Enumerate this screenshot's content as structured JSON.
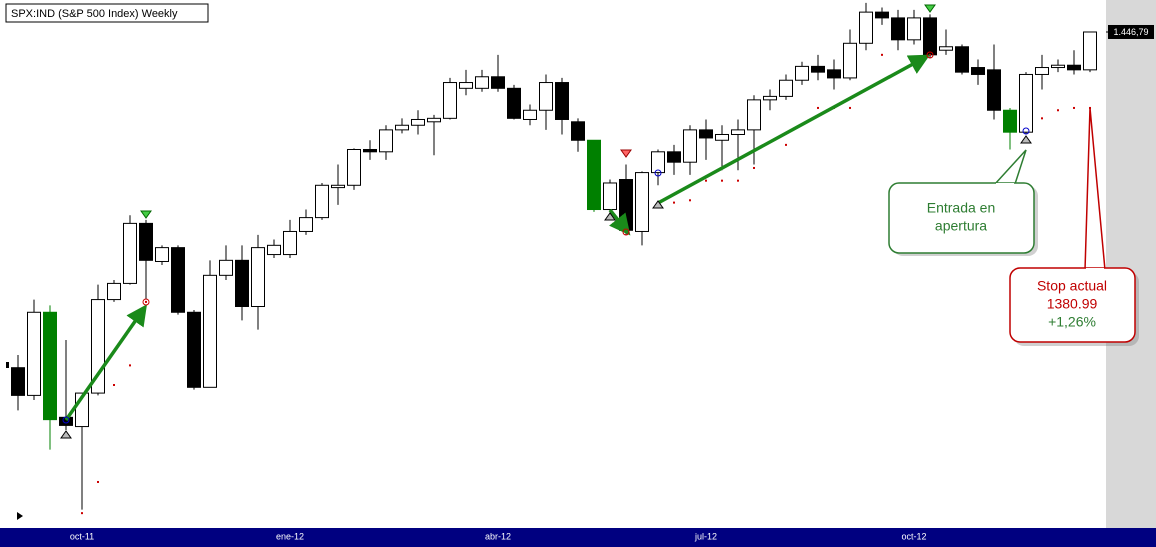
{
  "chart_data": {
    "type": "candlestick",
    "title": "SPX:IND (S&P 500 Index) Weekly",
    "categories": [
      null,
      null,
      null,
      null,
      "oct-11",
      null,
      null,
      null,
      null,
      null,
      null,
      null,
      null,
      null,
      null,
      null,
      null,
      "ene-12",
      null,
      null,
      null,
      null,
      null,
      null,
      null,
      null,
      null,
      null,
      null,
      null,
      "abr-12",
      null,
      null,
      null,
      null,
      null,
      null,
      null,
      null,
      null,
      null,
      null,
      null,
      "jul-12",
      null,
      null,
      null,
      null,
      null,
      null,
      null,
      null,
      null,
      null,
      null,
      null,
      "oct-12",
      null,
      null,
      null,
      null,
      null,
      null,
      null,
      null,
      null,
      null,
      null
    ],
    "open": [
      1156,
      1132,
      1204,
      1113,
      1105,
      1134,
      1215,
      1229,
      1281,
      1248,
      1260,
      1204,
      1139,
      1236,
      1249,
      1209,
      1254,
      1254,
      1274,
      1286,
      1312,
      1314,
      1345,
      1343,
      1362,
      1366,
      1369,
      1372,
      1398,
      1398,
      1408,
      1398,
      1371,
      1379,
      1403,
      1369,
      1353,
      1293,
      1319,
      1274,
      1325,
      1343,
      1334,
      1362,
      1353,
      1358,
      1362,
      1388,
      1391,
      1405,
      1417,
      1414,
      1407,
      1437,
      1464,
      1459,
      1440,
      1459,
      1431,
      1434,
      1416,
      1414,
      1379,
      1360,
      1410,
      1416,
      1418,
      1414
    ],
    "high": [
      1167,
      1215,
      1210,
      1180,
      1134,
      1228,
      1232,
      1288,
      1284,
      1262,
      1262,
      1206,
      1249,
      1262,
      1262,
      1271,
      1267,
      1284,
      1293,
      1316,
      1332,
      1346,
      1353,
      1366,
      1372,
      1379,
      1375,
      1407,
      1414,
      1414,
      1427,
      1401,
      1384,
      1410,
      1407,
      1372,
      1353,
      1319,
      1332,
      1326,
      1345,
      1349,
      1366,
      1371,
      1366,
      1371,
      1392,
      1397,
      1410,
      1421,
      1427,
      1423,
      1449,
      1472,
      1468,
      1466,
      1466,
      1462,
      1449,
      1436,
      1423,
      1436,
      1381,
      1412,
      1427,
      1423,
      1431,
      1446.79
    ],
    "low": [
      1119,
      1128,
      1085,
      1102,
      1033,
      1132,
      1213,
      1228,
      1215,
      1245,
      1202,
      1137,
      1139,
      1232,
      1197,
      1189,
      1251,
      1251,
      1271,
      1284,
      1297,
      1310,
      1336,
      1336,
      1359,
      1358,
      1340,
      1371,
      1392,
      1395,
      1395,
      1371,
      1366,
      1362,
      1358,
      1343,
      1291,
      1288,
      1271,
      1262,
      1314,
      1323,
      1323,
      1336,
      1327,
      1327,
      1332,
      1379,
      1388,
      1401,
      1405,
      1397,
      1405,
      1431,
      1453,
      1431,
      1436,
      1424,
      1427,
      1410,
      1401,
      1371,
      1345,
      1358,
      1397,
      1412,
      1410,
      1412
    ],
    "close": [
      1132,
      1204,
      1111,
      1106,
      1134,
      1215,
      1229,
      1281,
      1249,
      1260,
      1204,
      1139,
      1236,
      1249,
      1209,
      1260,
      1262,
      1274,
      1286,
      1314,
      1314,
      1345,
      1343,
      1362,
      1366,
      1371,
      1372,
      1403,
      1403,
      1408,
      1398,
      1372,
      1379,
      1403,
      1371,
      1353,
      1293,
      1316,
      1275,
      1325,
      1343,
      1334,
      1362,
      1355,
      1358,
      1362,
      1388,
      1391,
      1405,
      1417,
      1412,
      1407,
      1437,
      1464,
      1459,
      1440,
      1459,
      1427,
      1434,
      1412,
      1410,
      1379,
      1360,
      1410,
      1416,
      1418,
      1414,
      1446.79
    ],
    "stop_levels": [
      null,
      null,
      null,
      null,
      1030,
      1057,
      1141,
      1158,
      1213,
      null,
      null,
      null,
      null,
      null,
      null,
      null,
      null,
      null,
      null,
      null,
      null,
      null,
      null,
      null,
      null,
      null,
      null,
      null,
      null,
      null,
      null,
      null,
      null,
      null,
      null,
      null,
      null,
      null,
      null,
      null,
      null,
      1299,
      1301,
      1318,
      1318,
      1318,
      1329,
      null,
      1349,
      null,
      1381,
      1381,
      1381,
      null,
      1427,
      null,
      null,
      1427,
      null,
      null,
      null,
      null,
      null,
      null,
      1372,
      1379,
      1381,
      1380.99
    ],
    "up_color": "#ffffff",
    "down_color": "#000000",
    "highlight": [
      2,
      36,
      62
    ],
    "highlight_color": "#008000",
    "stop_color": "#cc0000",
    "ylim": [
      1018,
      1474.5
    ],
    "yticks": [
      {
        "value": 1446.79,
        "label": "1.446,79"
      }
    ],
    "annotations": {
      "entry": [
        "Entrada en",
        "apertura"
      ],
      "stop": [
        "Stop actual",
        "1380.99",
        "+1,26%"
      ]
    }
  }
}
